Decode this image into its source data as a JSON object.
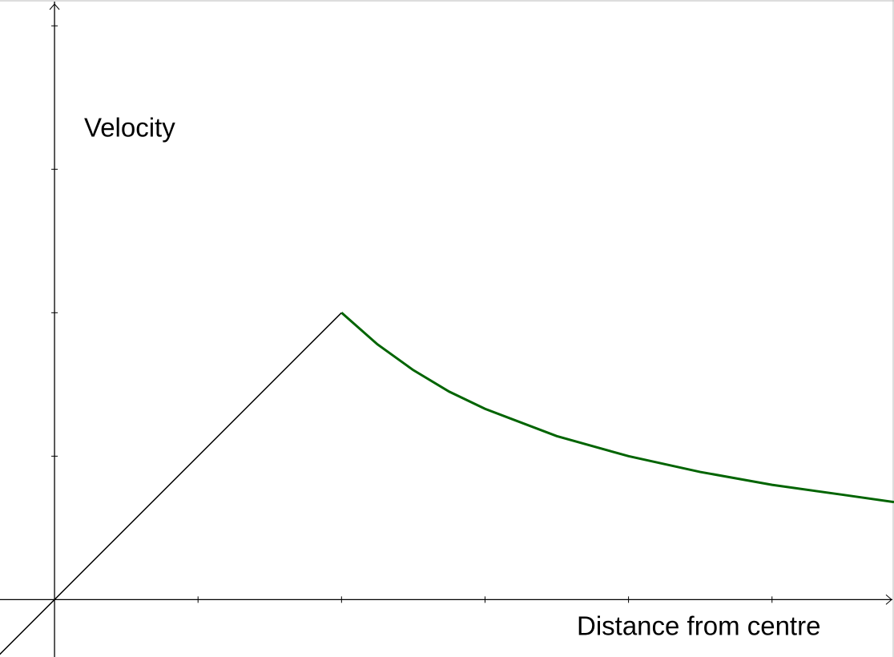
{
  "chart_data": {
    "type": "line",
    "y_label": "Velocity",
    "x_label": "Distance from centre",
    "xlim": [
      -0.38,
      5.85
    ],
    "ylim": [
      -0.4,
      4.18
    ],
    "xticks": [
      1,
      2,
      3,
      4,
      5
    ],
    "yticks": [
      1,
      2,
      3,
      4
    ],
    "series": [
      {
        "color": "#000000",
        "x": [
          -0.4,
          2
        ],
        "values": [
          -0.4,
          2
        ]
      },
      {
        "color": "#006400",
        "x": [
          2,
          2.25,
          2.5,
          2.75,
          3,
          3.5,
          4,
          4.5,
          5,
          5.5,
          5.85
        ],
        "values": [
          2,
          1.78,
          1.6,
          1.45,
          1.33,
          1.14,
          1,
          0.89,
          0.8,
          0.73,
          0.68
        ]
      }
    ]
  }
}
